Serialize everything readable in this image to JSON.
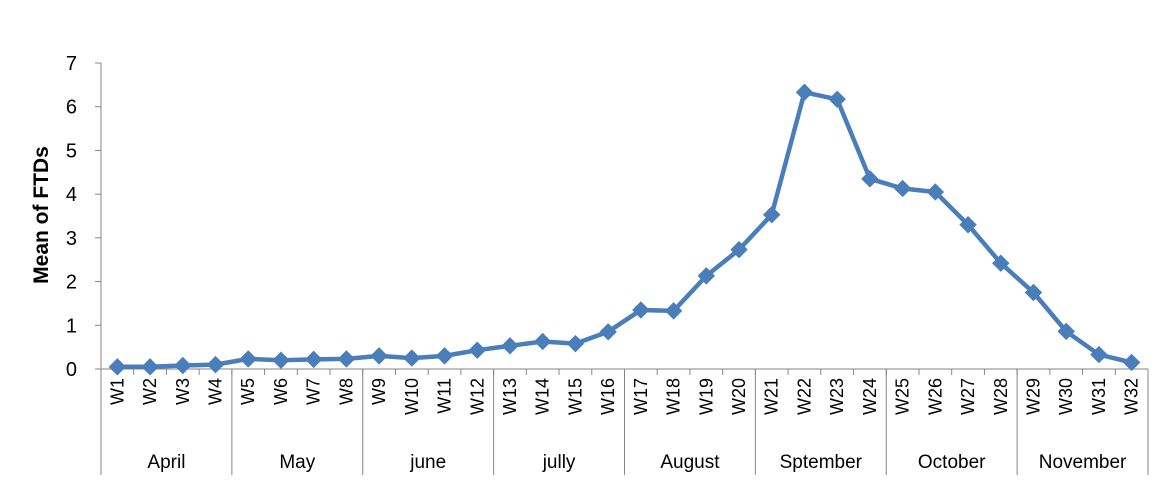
{
  "chart_data": {
    "type": "line",
    "ylabel": "Mean of FTDs",
    "xlabel": "",
    "ylim": [
      0,
      7
    ],
    "yticks": [
      0,
      1,
      2,
      3,
      4,
      5,
      6,
      7
    ],
    "grid": false,
    "legend": "none",
    "series_color": "#4a7ebb",
    "categories": [
      "W1",
      "W2",
      "W3",
      "W4",
      "W5",
      "W6",
      "W7",
      "W8",
      "W9",
      "W10",
      "W11",
      "W12",
      "W13",
      "W14",
      "W15",
      "W16",
      "W17",
      "W18",
      "W19",
      "W20",
      "W21",
      "W22",
      "W23",
      "W24",
      "W25",
      "W26",
      "W27",
      "W28",
      "W29",
      "W30",
      "W31",
      "W32"
    ],
    "values": [
      0.05,
      0.05,
      0.08,
      0.1,
      0.23,
      0.2,
      0.22,
      0.23,
      0.3,
      0.25,
      0.3,
      0.43,
      0.53,
      0.63,
      0.58,
      0.85,
      1.35,
      1.33,
      2.13,
      2.73,
      3.53,
      6.33,
      6.17,
      4.35,
      4.13,
      4.05,
      3.3,
      2.42,
      1.75,
      0.86,
      0.33,
      0.15
    ],
    "groups": [
      {
        "label": "April",
        "count": 4
      },
      {
        "label": "May",
        "count": 4
      },
      {
        "label": "june",
        "count": 4
      },
      {
        "label": "jully",
        "count": 4
      },
      {
        "label": "August",
        "count": 4
      },
      {
        "label": "Sptember",
        "count": 4
      },
      {
        "label": "October",
        "count": 4
      },
      {
        "label": "November",
        "count": 4
      }
    ]
  }
}
